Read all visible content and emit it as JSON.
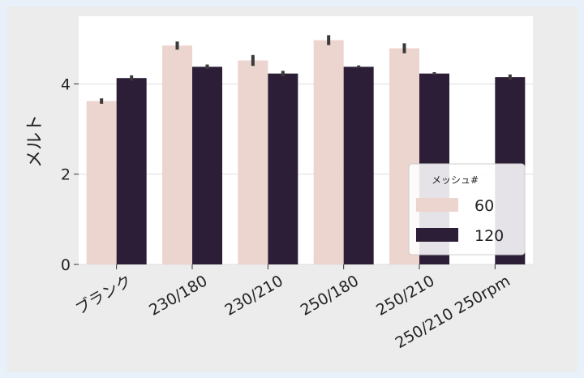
{
  "chart_data": {
    "type": "bar",
    "title": "",
    "xlabel": "",
    "ylabel": "メルト",
    "ylim": [
      0,
      5.5
    ],
    "yticks": [
      0,
      2,
      4
    ],
    "grid": true,
    "legend_position": "right",
    "legend_title": "メッシュ#",
    "categories": [
      "ブランク",
      "230/180",
      "230/210",
      "250/180",
      "250/210",
      "250/210 250rpm"
    ],
    "series": [
      {
        "name": "60",
        "color": "#ecd5cf",
        "values": [
          3.62,
          4.85,
          4.52,
          4.97,
          4.79,
          null
        ],
        "errors": [
          0.06,
          0.09,
          0.12,
          0.11,
          0.11,
          null
        ]
      },
      {
        "name": "120",
        "color": "#2d1e38",
        "values": [
          4.13,
          4.38,
          4.23,
          4.38,
          4.23,
          4.15
        ],
        "errors": [
          0.06,
          0.05,
          0.06,
          0.03,
          0.03,
          0.06
        ]
      }
    ]
  }
}
